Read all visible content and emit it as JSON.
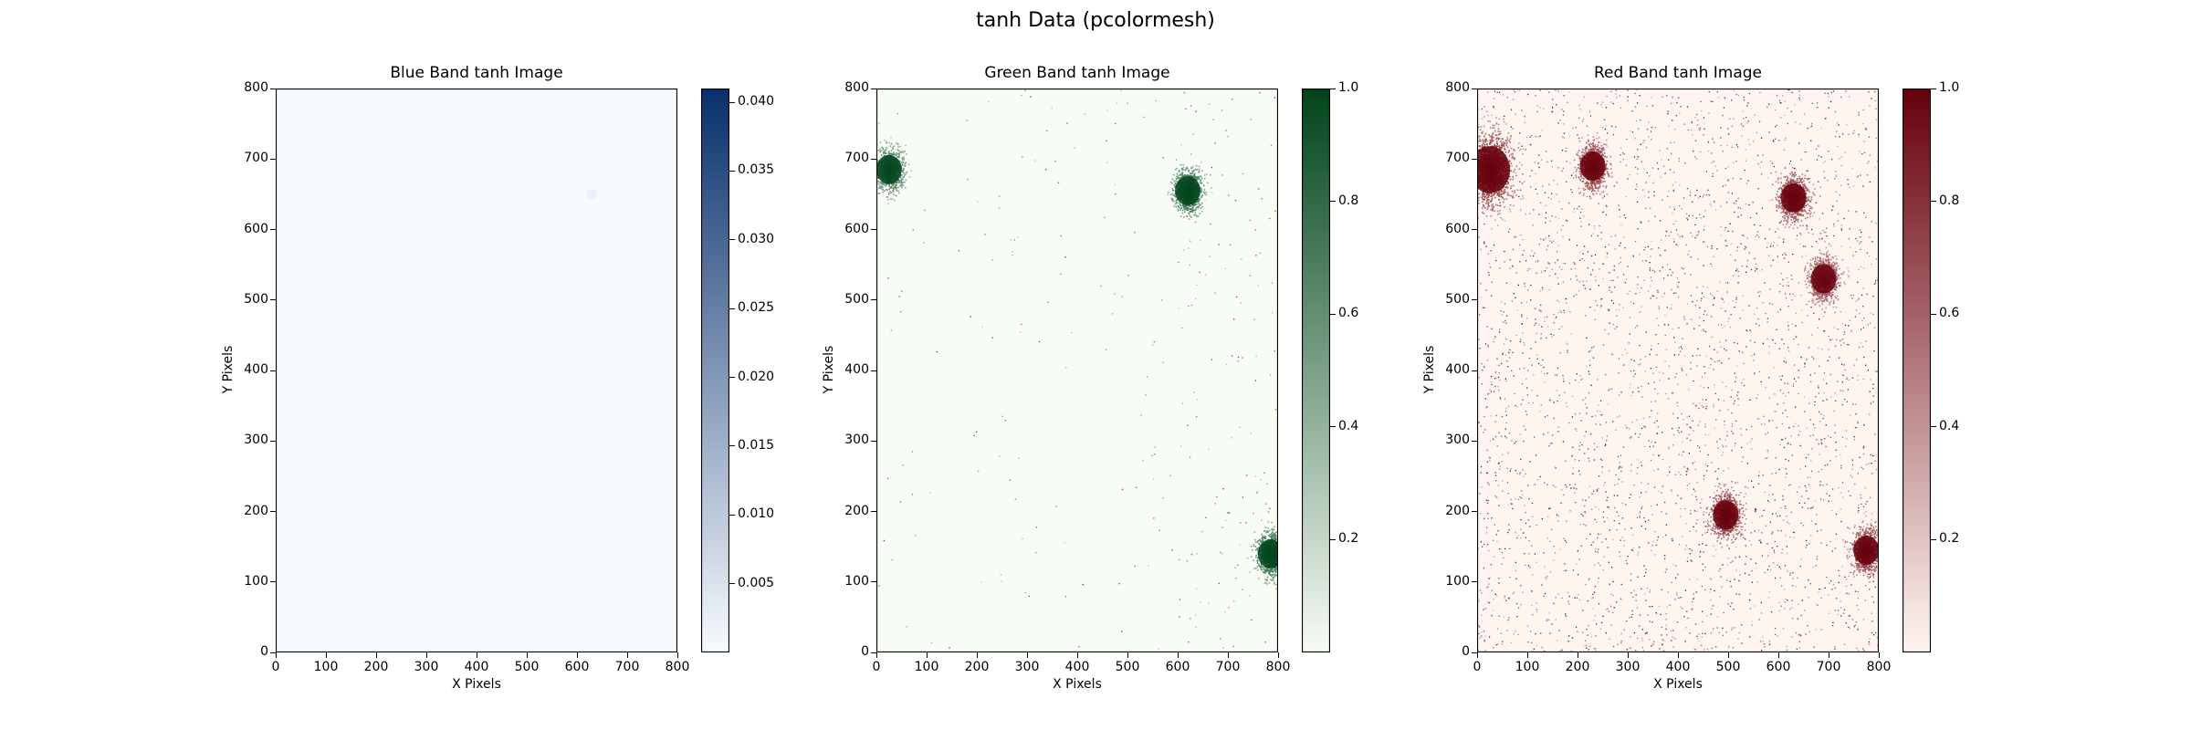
{
  "figure": {
    "suptitle": "tanh Data (pcolormesh)"
  },
  "chart_data": [
    {
      "type": "heatmap",
      "title": "Blue Band tanh Image",
      "xlabel": "X Pixels",
      "ylabel": "Y Pixels",
      "xlim": [
        0,
        800
      ],
      "ylim": [
        0,
        800
      ],
      "xticks": [
        "0",
        "100",
        "200",
        "300",
        "400",
        "500",
        "600",
        "700",
        "800"
      ],
      "yticks": [
        "0",
        "100",
        "200",
        "300",
        "400",
        "500",
        "600",
        "700",
        "800"
      ],
      "colormap": "Blues",
      "colors": {
        "low": "#f7fbff",
        "high": "#08306b"
      },
      "colorbar": {
        "min": 0.0,
        "max": 0.041,
        "ticks": [
          "0.005",
          "0.010",
          "0.015",
          "0.020",
          "0.025",
          "0.030",
          "0.035",
          "0.040"
        ]
      },
      "hotspots": [
        {
          "x": 630,
          "y": 650,
          "value": 0.004
        }
      ]
    },
    {
      "type": "heatmap",
      "title": "Green Band tanh Image",
      "xlabel": "X Pixels",
      "ylabel": "Y Pixels",
      "xlim": [
        0,
        800
      ],
      "ylim": [
        0,
        800
      ],
      "xticks": [
        "0",
        "100",
        "200",
        "300",
        "400",
        "500",
        "600",
        "700",
        "800"
      ],
      "yticks": [
        "0",
        "100",
        "200",
        "300",
        "400",
        "500",
        "600",
        "700",
        "800"
      ],
      "colormap": "Greens",
      "colors": {
        "low": "#f7fcf5",
        "high": "#00441b"
      },
      "colorbar": {
        "min": 0.0,
        "max": 1.0,
        "ticks": [
          "0.2",
          "0.4",
          "0.6",
          "0.8",
          "1.0"
        ]
      },
      "hotspots": [
        {
          "x": 620,
          "y": 655,
          "value": 1.0
        },
        {
          "x": 785,
          "y": 140,
          "value": 1.0
        },
        {
          "x": 25,
          "y": 685,
          "value": 0.9
        }
      ]
    },
    {
      "type": "heatmap",
      "title": "Red Band tanh Image",
      "xlabel": "X Pixels",
      "ylabel": "Y Pixels",
      "xlim": [
        0,
        800
      ],
      "ylim": [
        0,
        800
      ],
      "xticks": [
        "0",
        "100",
        "200",
        "300",
        "400",
        "500",
        "600",
        "700",
        "800"
      ],
      "yticks": [
        "0",
        "100",
        "200",
        "300",
        "400",
        "500",
        "600",
        "700",
        "800"
      ],
      "colormap": "Reds",
      "colors": {
        "low": "#fff5f0",
        "high": "#67000d"
      },
      "colorbar": {
        "min": 0.0,
        "max": 1.0,
        "ticks": [
          "0.2",
          "0.4",
          "0.6",
          "0.8",
          "1.0"
        ]
      },
      "hotspots": [
        {
          "x": 25,
          "y": 685,
          "value": 1.0
        },
        {
          "x": 230,
          "y": 690,
          "value": 1.0
        },
        {
          "x": 630,
          "y": 645,
          "value": 1.0
        },
        {
          "x": 690,
          "y": 530,
          "value": 0.9
        },
        {
          "x": 495,
          "y": 195,
          "value": 1.0
        },
        {
          "x": 775,
          "y": 145,
          "value": 1.0
        }
      ]
    }
  ]
}
